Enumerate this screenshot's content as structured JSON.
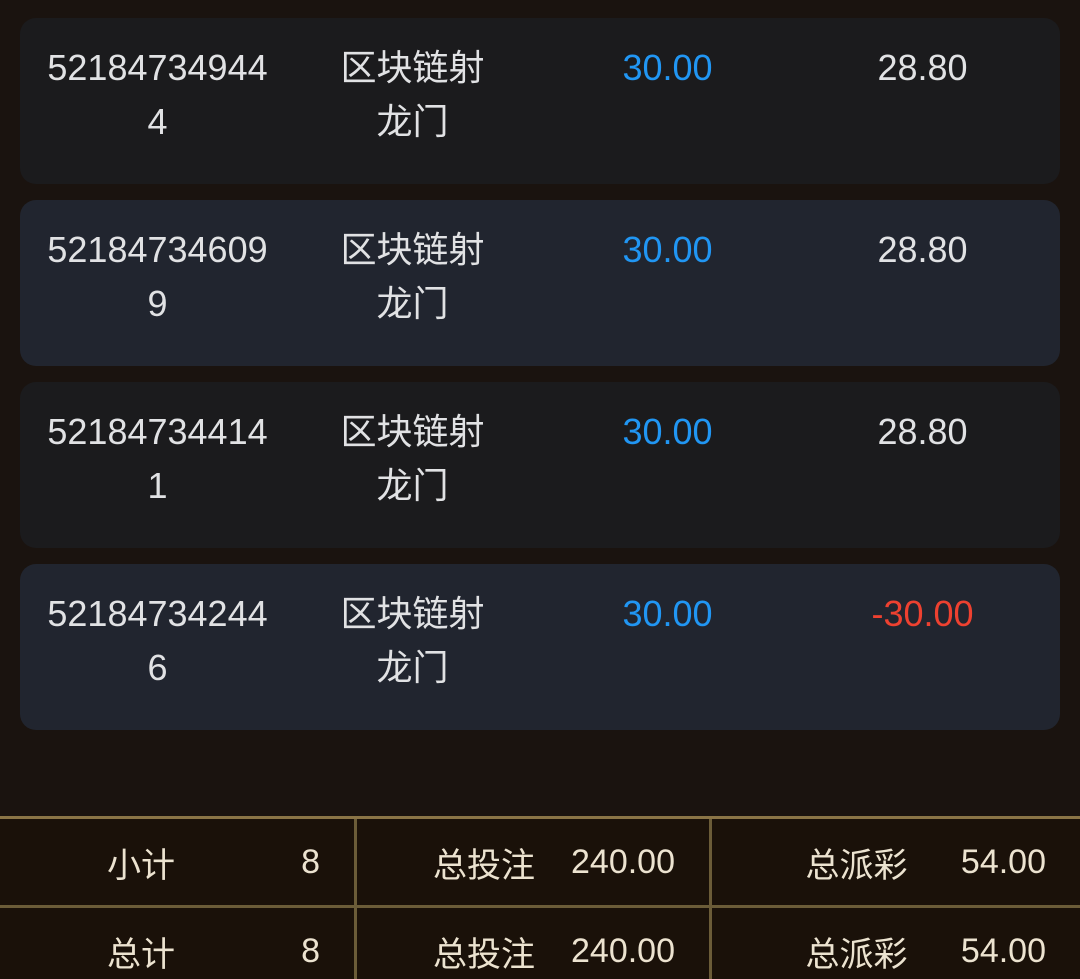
{
  "colors": {
    "page_bg": "#1a130f",
    "card_bg_a": "#1b1b1d",
    "card_bg_b": "#21252f",
    "row_text": "#e1e2e4",
    "bet_blue": "#2196f3",
    "loss_red": "#ee4130",
    "summary_bg": "#1a1109",
    "summary_border": "#8a7446",
    "summary_border_inner": "#6b5c38",
    "summary_text": "#ece3d0"
  },
  "records": [
    {
      "order_id": "521847349444",
      "game": "区块链射龙门",
      "bet": "30.00",
      "payout": "28.80"
    },
    {
      "order_id": "521847346099",
      "game": "区块链射龙门",
      "bet": "30.00",
      "payout": "28.80"
    },
    {
      "order_id": "521847344141",
      "game": "区块链射龙门",
      "bet": "30.00",
      "payout": "28.80"
    },
    {
      "order_id": "521847342446",
      "game": "区块链射龙门",
      "bet": "30.00",
      "payout": "-30.00"
    }
  ],
  "summary": {
    "subtotal": {
      "label": "小计",
      "count": "8",
      "bet_label": "总投注",
      "bet_value": "240.00",
      "payout_label": "总派彩",
      "payout_value": "54.00"
    },
    "total": {
      "label": "总计",
      "count": "8",
      "bet_label": "总投注",
      "bet_value": "240.00",
      "payout_label": "总派彩",
      "payout_value": "54.00"
    }
  }
}
